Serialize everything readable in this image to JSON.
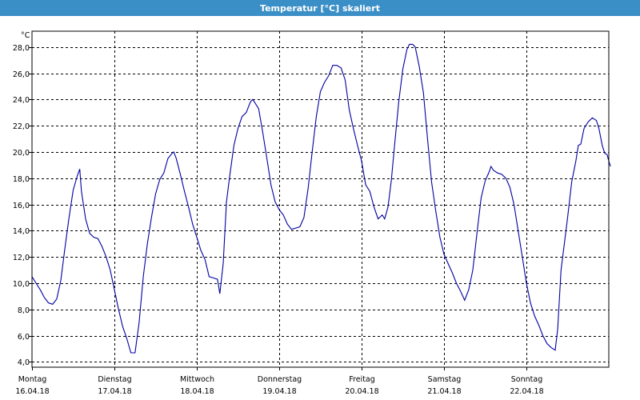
{
  "window": {
    "title": "Temperatur [°C] skaliert"
  },
  "chart_data": {
    "type": "line",
    "title": "Temperatur [°C] skaliert",
    "ylabel": "°C",
    "xlabel": "",
    "grid": true,
    "ylim": [
      3.6,
      29.2
    ],
    "yticks": [
      "28,0",
      "26,0",
      "24,0",
      "22,0",
      "20,0",
      "18,0",
      "16,0",
      "14,0",
      "12,0",
      "10,0",
      "8,0",
      "6,0",
      "4,0"
    ],
    "ytick_values": [
      28,
      26,
      24,
      22,
      20,
      18,
      16,
      14,
      12,
      10,
      8,
      6,
      4
    ],
    "xlim": [
      0,
      7.0
    ],
    "xticks": [
      {
        "day": "Montag",
        "date": "16.04.18",
        "t": 0
      },
      {
        "day": "Dienstag",
        "date": "17.04.18",
        "t": 1
      },
      {
        "day": "Mittwoch",
        "date": "18.04.18",
        "t": 2
      },
      {
        "day": "Donnerstag",
        "date": "19.04.18",
        "t": 3
      },
      {
        "day": "Freitag",
        "date": "20.04.18",
        "t": 4
      },
      {
        "day": "Samstag",
        "date": "21.04.18",
        "t": 5
      },
      {
        "day": "Sonntag",
        "date": "22.04.18",
        "t": 6
      }
    ],
    "series": [
      {
        "name": "",
        "color": "#0000a0",
        "points": [
          [
            0.0,
            10.5
          ],
          [
            0.05,
            10.0
          ],
          [
            0.1,
            9.5
          ],
          [
            0.15,
            8.9
          ],
          [
            0.2,
            8.5
          ],
          [
            0.25,
            8.4
          ],
          [
            0.3,
            8.8
          ],
          [
            0.35,
            10.2
          ],
          [
            0.4,
            12.7
          ],
          [
            0.45,
            15.0
          ],
          [
            0.5,
            17.1
          ],
          [
            0.55,
            18.2
          ],
          [
            0.58,
            18.7
          ],
          [
            0.6,
            17.0
          ],
          [
            0.65,
            14.9
          ],
          [
            0.7,
            13.8
          ],
          [
            0.75,
            13.5
          ],
          [
            0.8,
            13.4
          ],
          [
            0.85,
            12.8
          ],
          [
            0.9,
            12.0
          ],
          [
            0.95,
            11.0
          ],
          [
            1.0,
            9.5
          ],
          [
            1.05,
            8.0
          ],
          [
            1.1,
            6.7
          ],
          [
            1.15,
            5.8
          ],
          [
            1.2,
            4.7
          ],
          [
            1.25,
            4.7
          ],
          [
            1.3,
            7.0
          ],
          [
            1.35,
            10.5
          ],
          [
            1.4,
            13.0
          ],
          [
            1.45,
            15.0
          ],
          [
            1.5,
            16.8
          ],
          [
            1.55,
            17.9
          ],
          [
            1.6,
            18.4
          ],
          [
            1.65,
            19.5
          ],
          [
            1.7,
            19.9
          ],
          [
            1.72,
            20.0
          ],
          [
            1.75,
            19.5
          ],
          [
            1.8,
            18.3
          ],
          [
            1.85,
            17.0
          ],
          [
            1.9,
            15.8
          ],
          [
            1.95,
            14.5
          ],
          [
            2.0,
            13.5
          ],
          [
            2.05,
            12.5
          ],
          [
            2.1,
            11.8
          ],
          [
            2.15,
            10.5
          ],
          [
            2.2,
            10.4
          ],
          [
            2.25,
            10.3
          ],
          [
            2.28,
            9.2
          ],
          [
            2.32,
            11.5
          ],
          [
            2.36,
            16.2
          ],
          [
            2.4,
            18.2
          ],
          [
            2.45,
            20.5
          ],
          [
            2.5,
            21.8
          ],
          [
            2.55,
            22.7
          ],
          [
            2.6,
            23.0
          ],
          [
            2.65,
            23.8
          ],
          [
            2.68,
            24.0
          ],
          [
            2.7,
            23.8
          ],
          [
            2.75,
            23.3
          ],
          [
            2.8,
            21.5
          ],
          [
            2.85,
            19.5
          ],
          [
            2.9,
            17.5
          ],
          [
            2.95,
            16.2
          ],
          [
            3.0,
            15.6
          ],
          [
            3.05,
            15.2
          ],
          [
            3.1,
            14.5
          ],
          [
            3.15,
            14.1
          ],
          [
            3.2,
            14.2
          ],
          [
            3.25,
            14.3
          ],
          [
            3.3,
            15.0
          ],
          [
            3.35,
            17.2
          ],
          [
            3.4,
            20.0
          ],
          [
            3.45,
            22.7
          ],
          [
            3.5,
            24.6
          ],
          [
            3.55,
            25.3
          ],
          [
            3.6,
            25.8
          ],
          [
            3.65,
            26.6
          ],
          [
            3.7,
            26.6
          ],
          [
            3.75,
            26.4
          ],
          [
            3.8,
            25.5
          ],
          [
            3.85,
            23.2
          ],
          [
            3.9,
            21.8
          ],
          [
            3.95,
            20.5
          ],
          [
            4.0,
            19.3
          ],
          [
            4.05,
            17.5
          ],
          [
            4.1,
            17.0
          ],
          [
            4.15,
            15.8
          ],
          [
            4.2,
            14.9
          ],
          [
            4.25,
            15.2
          ],
          [
            4.28,
            14.9
          ],
          [
            4.32,
            15.8
          ],
          [
            4.36,
            17.8
          ],
          [
            4.4,
            20.5
          ],
          [
            4.45,
            23.8
          ],
          [
            4.5,
            26.3
          ],
          [
            4.55,
            27.8
          ],
          [
            4.58,
            28.2
          ],
          [
            4.62,
            28.2
          ],
          [
            4.65,
            28.0
          ],
          [
            4.7,
            26.5
          ],
          [
            4.75,
            24.5
          ],
          [
            4.8,
            21.0
          ],
          [
            4.85,
            17.7
          ],
          [
            4.9,
            15.5
          ],
          [
            4.95,
            13.5
          ],
          [
            5.0,
            12.2
          ],
          [
            5.05,
            11.5
          ],
          [
            5.1,
            10.8
          ],
          [
            5.15,
            10.0
          ],
          [
            5.2,
            9.4
          ],
          [
            5.25,
            8.7
          ],
          [
            5.3,
            9.5
          ],
          [
            5.35,
            11.0
          ],
          [
            5.4,
            13.8
          ],
          [
            5.45,
            16.5
          ],
          [
            5.5,
            17.8
          ],
          [
            5.55,
            18.5
          ],
          [
            5.57,
            18.9
          ],
          [
            5.6,
            18.6
          ],
          [
            5.65,
            18.4
          ],
          [
            5.7,
            18.3
          ],
          [
            5.75,
            18.0
          ],
          [
            5.8,
            17.3
          ],
          [
            5.85,
            16.0
          ],
          [
            5.9,
            14.0
          ],
          [
            5.95,
            12.0
          ],
          [
            6.0,
            10.0
          ],
          [
            6.05,
            8.5
          ],
          [
            6.1,
            7.5
          ],
          [
            6.15,
            6.8
          ],
          [
            6.2,
            6.0
          ],
          [
            6.25,
            5.4
          ],
          [
            6.3,
            5.1
          ],
          [
            6.35,
            4.9
          ],
          [
            6.38,
            6.5
          ],
          [
            6.42,
            11.0
          ],
          [
            6.46,
            13.0
          ],
          [
            6.5,
            15.0
          ],
          [
            6.55,
            17.7
          ],
          [
            6.6,
            19.3
          ],
          [
            6.63,
            20.5
          ],
          [
            6.66,
            20.6
          ],
          [
            6.7,
            21.8
          ],
          [
            6.75,
            22.3
          ],
          [
            6.8,
            22.6
          ],
          [
            6.85,
            22.4
          ],
          [
            6.88,
            21.8
          ],
          [
            6.92,
            20.5
          ],
          [
            6.95,
            19.9
          ],
          [
            6.98,
            19.8
          ],
          [
            7.0,
            19.3
          ],
          [
            7.02,
            18.9
          ]
        ]
      }
    ]
  }
}
